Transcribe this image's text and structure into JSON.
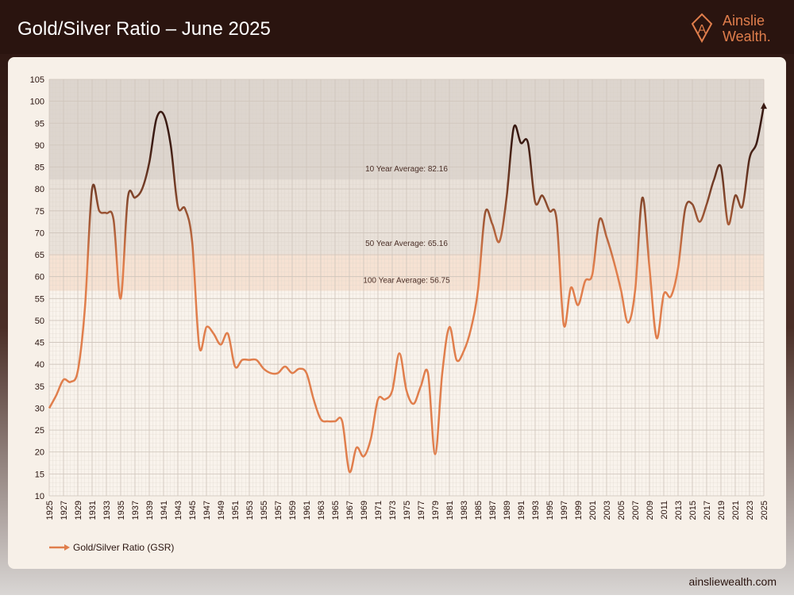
{
  "header": {
    "title": "Gold/Silver Ratio – June 2025",
    "logo": [
      "Ainslie",
      "Wealth."
    ]
  },
  "footer": "ainsliewealth.com",
  "chart_data": {
    "type": "line",
    "x": [
      1925,
      1926,
      1927,
      1928,
      1929,
      1930,
      1931,
      1932,
      1933,
      1934,
      1935,
      1936,
      1937,
      1938,
      1939,
      1940,
      1941,
      1942,
      1943,
      1944,
      1945,
      1946,
      1947,
      1948,
      1949,
      1950,
      1951,
      1952,
      1953,
      1954,
      1955,
      1956,
      1957,
      1958,
      1959,
      1960,
      1961,
      1962,
      1963,
      1964,
      1965,
      1966,
      1967,
      1968,
      1969,
      1970,
      1971,
      1972,
      1973,
      1974,
      1975,
      1976,
      1977,
      1978,
      1979,
      1980,
      1981,
      1982,
      1983,
      1984,
      1985,
      1986,
      1987,
      1988,
      1989,
      1990,
      1991,
      1992,
      1993,
      1994,
      1995,
      1996,
      1997,
      1998,
      1999,
      2000,
      2001,
      2002,
      2003,
      2004,
      2005,
      2006,
      2007,
      2008,
      2009,
      2010,
      2011,
      2012,
      2013,
      2014,
      2015,
      2016,
      2017,
      2018,
      2019,
      2020,
      2021,
      2022,
      2023,
      2024,
      2025
    ],
    "series": [
      {
        "name": "Gold/Silver Ratio (GSR)",
        "color": "#e07e4c",
        "color_high": "#3a1a12",
        "values": [
          30,
          33,
          36.5,
          36,
          38.5,
          53,
          80,
          75,
          74.5,
          73,
          55,
          78,
          78,
          80,
          86,
          96,
          97,
          90,
          76,
          75.5,
          68,
          44,
          48.5,
          47,
          44.5,
          47,
          39.5,
          41,
          41,
          41,
          39,
          38,
          38,
          39.5,
          38,
          39,
          38,
          32,
          27.5,
          27,
          27,
          27,
          15.5,
          21,
          19,
          23,
          32,
          32,
          34,
          42.5,
          34,
          31,
          35,
          38,
          19.5,
          38,
          48.5,
          41,
          43,
          48,
          57,
          74.5,
          72,
          68,
          78,
          94,
          90.5,
          90.5,
          77,
          78.5,
          75,
          73,
          49,
          57.5,
          53.5,
          59,
          60.5,
          73,
          69,
          63.5,
          57,
          49.5,
          57,
          78,
          62,
          46,
          56,
          55.5,
          62,
          75.5,
          76.5,
          72.5,
          76.5,
          82,
          85,
          72,
          78.5,
          76,
          87,
          90.5,
          99
        ]
      }
    ],
    "annotations": [
      {
        "label": "10 Year Average: 82.16",
        "value": 82.16
      },
      {
        "label": "50 Year Average: 65.16",
        "value": 65.16
      },
      {
        "label": "100 Year Average: 56.75",
        "value": 56.75
      }
    ],
    "xlim": [
      1925,
      2025
    ],
    "xticks": [
      1925,
      1927,
      1929,
      1931,
      1933,
      1935,
      1937,
      1939,
      1941,
      1943,
      1945,
      1947,
      1949,
      1951,
      1953,
      1955,
      1957,
      1959,
      1961,
      1963,
      1965,
      1967,
      1969,
      1971,
      1973,
      1975,
      1977,
      1979,
      1981,
      1983,
      1985,
      1987,
      1989,
      1991,
      1993,
      1995,
      1997,
      1999,
      2001,
      2003,
      2005,
      2007,
      2009,
      2011,
      2013,
      2015,
      2017,
      2019,
      2021,
      2023,
      2025
    ],
    "ylim": [
      10,
      105
    ],
    "yticks": [
      10,
      15,
      20,
      25,
      30,
      35,
      40,
      45,
      50,
      55,
      60,
      65,
      70,
      75,
      80,
      85,
      90,
      95,
      100,
      105
    ],
    "grid": true,
    "legend": "bottom-left"
  }
}
